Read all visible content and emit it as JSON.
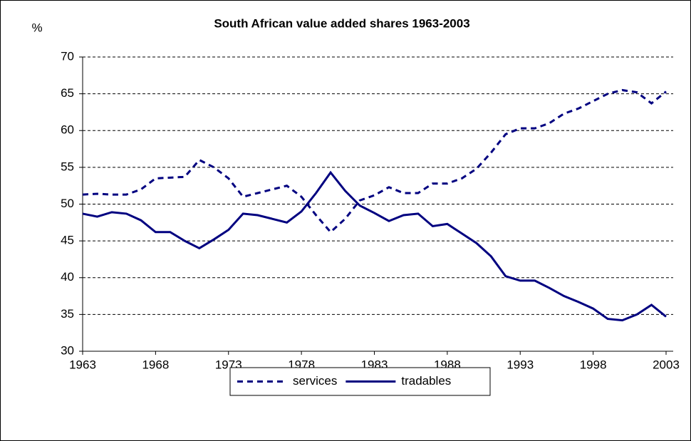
{
  "chart_data": {
    "type": "line",
    "title": "South African value added shares 1963-2003",
    "ylabel": "%",
    "x": [
      1963,
      1964,
      1965,
      1966,
      1967,
      1968,
      1969,
      1970,
      1971,
      1972,
      1973,
      1974,
      1975,
      1976,
      1977,
      1978,
      1979,
      1980,
      1981,
      1982,
      1983,
      1984,
      1985,
      1986,
      1987,
      1988,
      1989,
      1990,
      1991,
      1992,
      1993,
      1994,
      1995,
      1996,
      1997,
      1998,
      1999,
      2000,
      2001,
      2002,
      2003
    ],
    "series": [
      {
        "name": "services",
        "color": "#000080",
        "style": "dashed",
        "values": [
          51.3,
          51.4,
          51.3,
          51.3,
          52.0,
          53.5,
          53.6,
          53.7,
          56.0,
          55.0,
          53.5,
          51.0,
          51.5,
          52.0,
          52.5,
          51.0,
          48.5,
          46.2,
          48.0,
          50.5,
          51.2,
          52.3,
          51.5,
          51.5,
          52.8,
          52.8,
          53.5,
          54.8,
          57.0,
          59.5,
          60.3,
          60.3,
          61.0,
          62.3,
          63.0,
          64.0,
          65.0,
          65.5,
          65.2,
          63.7,
          65.3
        ]
      },
      {
        "name": "tradables",
        "color": "#000080",
        "style": "solid",
        "values": [
          48.7,
          48.3,
          48.9,
          48.7,
          47.8,
          46.2,
          46.2,
          45.0,
          44.0,
          45.2,
          46.5,
          48.7,
          48.5,
          48.0,
          47.5,
          49.0,
          51.5,
          54.3,
          51.8,
          49.8,
          48.8,
          47.7,
          48.5,
          48.7,
          47.0,
          47.3,
          46.0,
          44.7,
          42.9,
          40.2,
          39.6,
          39.6,
          38.6,
          37.5,
          36.7,
          35.8,
          34.4,
          34.2,
          35.0,
          36.3,
          34.7
        ]
      }
    ],
    "xlim": [
      1963,
      2003
    ],
    "xticks": [
      1963,
      1968,
      1973,
      1978,
      1983,
      1988,
      1993,
      1998,
      2003
    ],
    "ylim": [
      30,
      70
    ],
    "yticks": [
      30,
      35,
      40,
      45,
      50,
      55,
      60,
      65,
      70
    ],
    "grid": true,
    "legend": "bottom"
  }
}
